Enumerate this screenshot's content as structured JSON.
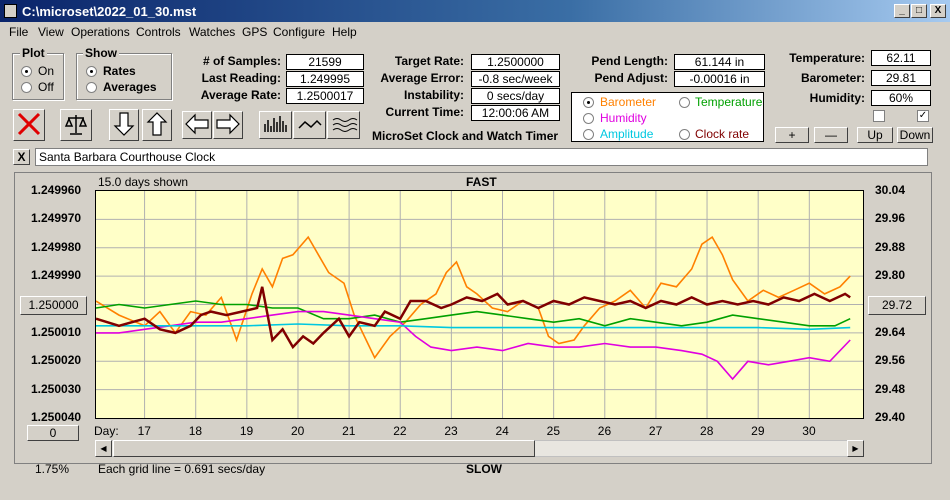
{
  "window": {
    "title": "C:\\microset\\2022_01_30.mst",
    "minimize": "_",
    "maximize": "□",
    "close": "X"
  },
  "menu": [
    "File",
    "View",
    "Operations",
    "Controls",
    "Watches",
    "GPS",
    "Configure",
    "Help"
  ],
  "plot_group": {
    "title": "Plot",
    "options": [
      "On",
      "Off"
    ],
    "selected": "On"
  },
  "show_group": {
    "title": "Show",
    "options": [
      "Rates",
      "Averages"
    ],
    "selected": "Rates"
  },
  "stats": {
    "samples_label": "# of Samples:",
    "samples": "21599",
    "last_reading_label": "Last Reading:",
    "last_reading": "1.249995",
    "average_rate_label": "Average Rate:",
    "average_rate": "1.2500017"
  },
  "rates": {
    "target_rate_label": "Target Rate:",
    "target_rate": "1.2500000",
    "average_error_label": "Average Error:",
    "average_error": "-0.8 sec/week",
    "instability_label": "Instability:",
    "instability": "0 secs/day",
    "current_time_label": "Current Time:",
    "current_time": "12:00:06 AM"
  },
  "app_caption": "MicroSet Clock and Watch Timer",
  "pendulum": {
    "length_label": "Pend Length:",
    "length": "61.144 in",
    "adjust_label": "Pend Adjust:",
    "adjust": "-0.00016 in"
  },
  "sensor_options": [
    {
      "label": "Barometer",
      "color": "#ff8000",
      "selected": true
    },
    {
      "label": "Temperature",
      "color": "#00a000",
      "selected": false
    },
    {
      "label": "Humidity",
      "color": "#e000e0",
      "selected": false
    },
    {
      "label": "Clock rate",
      "color": "#800000",
      "selected": false
    },
    {
      "label": "Amplitude",
      "color": "#00c8e0",
      "selected": false
    }
  ],
  "environment": {
    "temperature_label": "Temperature:",
    "temperature": "62.11",
    "barometer_label": "Barometer:",
    "barometer": "29.81",
    "humidity_label": "Humidity:",
    "humidity": "60%"
  },
  "adjust_buttons": [
    "+",
    "—",
    "Up",
    "Down"
  ],
  "checkbox_states": [
    false,
    true
  ],
  "watch_close": "X",
  "watch_name": "Santa Barbara Courthouse Clock",
  "chart": {
    "days_shown": "15.0 days shown",
    "fast_label": "FAST",
    "slow_label": "SLOW",
    "grid_note": "Each grid line = 0.691 secs/day",
    "percent": "1.75%",
    "left_box": "1.250000",
    "right_box": "29.72",
    "bottom_box": "0",
    "day_label": "Day:"
  },
  "chart_data": {
    "type": "line",
    "x_unit": "Day",
    "x_ticks": [
      17,
      18,
      19,
      20,
      21,
      22,
      23,
      24,
      25,
      26,
      27,
      28,
      29,
      30
    ],
    "xlim": [
      16.05,
      31.05
    ],
    "y_left_ticks": [
      "1.249960",
      "1.249970",
      "1.249980",
      "1.249990",
      "1.250000",
      "1.250010",
      "1.250020",
      "1.250030",
      "1.250040"
    ],
    "y_left_range": [
      1.24996,
      1.25004
    ],
    "y_right_ticks": [
      "30.04",
      "29.96",
      "29.88",
      "29.80",
      "29.72",
      "29.64",
      "29.56",
      "29.48",
      "29.40"
    ],
    "y_right_range": [
      29.4,
      30.04
    ],
    "series": [
      {
        "name": "Barometer",
        "color": "#ff8000",
        "points": [
          [
            16.05,
            29.73
          ],
          [
            16.5,
            29.69
          ],
          [
            17.0,
            29.66
          ],
          [
            17.3,
            29.7
          ],
          [
            17.6,
            29.64
          ],
          [
            17.9,
            29.7
          ],
          [
            18.2,
            29.69
          ],
          [
            18.5,
            29.74
          ],
          [
            18.8,
            29.62
          ],
          [
            19.1,
            29.75
          ],
          [
            19.3,
            29.82
          ],
          [
            19.5,
            29.77
          ],
          [
            19.7,
            29.85
          ],
          [
            19.9,
            29.86
          ],
          [
            20.2,
            29.91
          ],
          [
            20.4,
            29.86
          ],
          [
            20.6,
            29.81
          ],
          [
            20.9,
            29.78
          ],
          [
            21.1,
            29.69
          ],
          [
            21.3,
            29.63
          ],
          [
            21.5,
            29.57
          ],
          [
            21.8,
            29.63
          ],
          [
            22.1,
            29.67
          ],
          [
            22.4,
            29.72
          ],
          [
            22.7,
            29.75
          ],
          [
            22.9,
            29.81
          ],
          [
            23.1,
            29.84
          ],
          [
            23.3,
            29.77
          ],
          [
            23.5,
            29.75
          ],
          [
            23.8,
            29.71
          ],
          [
            24.1,
            29.7
          ],
          [
            24.4,
            29.73
          ],
          [
            24.7,
            29.71
          ],
          [
            24.9,
            29.63
          ],
          [
            25.1,
            29.61
          ],
          [
            25.4,
            29.62
          ],
          [
            25.6,
            29.66
          ],
          [
            25.9,
            29.71
          ],
          [
            26.2,
            29.73
          ],
          [
            26.5,
            29.76
          ],
          [
            26.8,
            29.71
          ],
          [
            27.1,
            29.78
          ],
          [
            27.4,
            29.77
          ],
          [
            27.7,
            29.82
          ],
          [
            27.9,
            29.89
          ],
          [
            28.1,
            29.91
          ],
          [
            28.3,
            29.86
          ],
          [
            28.5,
            29.79
          ],
          [
            28.8,
            29.73
          ],
          [
            29.1,
            29.76
          ],
          [
            29.4,
            29.74
          ],
          [
            29.7,
            29.76
          ],
          [
            30.0,
            29.78
          ],
          [
            30.3,
            29.75
          ],
          [
            30.6,
            29.77
          ],
          [
            30.8,
            29.8
          ]
        ]
      },
      {
        "name": "Temperature",
        "color": "#00a000",
        "points": [
          [
            16.05,
            29.71
          ],
          [
            16.5,
            29.72
          ],
          [
            17.0,
            29.71
          ],
          [
            17.5,
            29.72
          ],
          [
            18.0,
            29.73
          ],
          [
            18.5,
            29.72
          ],
          [
            19.0,
            29.72
          ],
          [
            19.5,
            29.71
          ],
          [
            20.0,
            29.71
          ],
          [
            20.5,
            29.68
          ],
          [
            21.0,
            29.68
          ],
          [
            21.5,
            29.69
          ],
          [
            22.0,
            29.67
          ],
          [
            22.5,
            29.68
          ],
          [
            23.0,
            29.69
          ],
          [
            23.5,
            29.7
          ],
          [
            24.0,
            29.69
          ],
          [
            24.5,
            29.68
          ],
          [
            25.0,
            29.67
          ],
          [
            25.5,
            29.68
          ],
          [
            26.0,
            29.66
          ],
          [
            26.5,
            29.68
          ],
          [
            27.0,
            29.67
          ],
          [
            27.5,
            29.66
          ],
          [
            28.0,
            29.67
          ],
          [
            28.5,
            29.69
          ],
          [
            29.0,
            29.68
          ],
          [
            29.5,
            29.67
          ],
          [
            30.0,
            29.66
          ],
          [
            30.5,
            29.66
          ],
          [
            30.8,
            29.68
          ]
        ]
      },
      {
        "name": "Humidity",
        "color": "#e000e0",
        "points": [
          [
            16.05,
            29.64
          ],
          [
            16.5,
            29.64
          ],
          [
            17.0,
            29.65
          ],
          [
            17.5,
            29.66
          ],
          [
            18.0,
            29.67
          ],
          [
            18.5,
            29.67
          ],
          [
            19.0,
            29.68
          ],
          [
            19.5,
            29.69
          ],
          [
            20.0,
            29.7
          ],
          [
            20.5,
            29.7
          ],
          [
            21.0,
            29.69
          ],
          [
            21.5,
            29.68
          ],
          [
            22.0,
            29.67
          ],
          [
            22.3,
            29.63
          ],
          [
            22.6,
            29.6
          ],
          [
            23.0,
            29.59
          ],
          [
            23.5,
            29.6
          ],
          [
            24.0,
            29.59
          ],
          [
            24.5,
            29.61
          ],
          [
            25.0,
            29.6
          ],
          [
            25.5,
            29.6
          ],
          [
            26.0,
            29.61
          ],
          [
            26.5,
            29.6
          ],
          [
            27.0,
            29.6
          ],
          [
            27.5,
            29.59
          ],
          [
            27.9,
            29.58
          ],
          [
            28.2,
            29.56
          ],
          [
            28.5,
            29.51
          ],
          [
            28.8,
            29.56
          ],
          [
            29.2,
            29.55
          ],
          [
            29.6,
            29.56
          ],
          [
            30.0,
            29.57
          ],
          [
            30.4,
            29.56
          ],
          [
            30.8,
            29.62
          ]
        ]
      },
      {
        "name": "Amplitude",
        "color": "#00c8e0",
        "points": [
          [
            16.05,
            29.66
          ],
          [
            17.0,
            29.66
          ],
          [
            18.0,
            29.66
          ],
          [
            19.0,
            29.66
          ],
          [
            20.0,
            29.665
          ],
          [
            21.0,
            29.66
          ],
          [
            22.0,
            29.66
          ],
          [
            23.0,
            29.655
          ],
          [
            24.0,
            29.655
          ],
          [
            25.0,
            29.655
          ],
          [
            26.0,
            29.655
          ],
          [
            27.0,
            29.655
          ],
          [
            28.0,
            29.655
          ],
          [
            29.0,
            29.655
          ],
          [
            30.0,
            29.65
          ],
          [
            30.8,
            29.655
          ]
        ]
      },
      {
        "name": "Clock rate",
        "color": "#800000",
        "points": [
          [
            16.05,
            29.68
          ],
          [
            16.5,
            29.66
          ],
          [
            17.0,
            29.68
          ],
          [
            17.3,
            29.65
          ],
          [
            17.6,
            29.64
          ],
          [
            17.9,
            29.66
          ],
          [
            18.1,
            29.69
          ],
          [
            18.3,
            29.7
          ],
          [
            18.6,
            29.69
          ],
          [
            18.9,
            29.7
          ],
          [
            19.2,
            29.71
          ],
          [
            19.3,
            29.77
          ],
          [
            19.5,
            29.62
          ],
          [
            19.7,
            29.65
          ],
          [
            19.9,
            29.6
          ],
          [
            20.1,
            29.63
          ],
          [
            20.3,
            29.61
          ],
          [
            20.5,
            29.64
          ],
          [
            20.8,
            29.68
          ],
          [
            21.0,
            29.63
          ],
          [
            21.2,
            29.67
          ],
          [
            21.5,
            29.66
          ],
          [
            21.7,
            29.7
          ],
          [
            22.0,
            29.68
          ],
          [
            22.2,
            29.73
          ],
          [
            22.5,
            29.73
          ],
          [
            22.8,
            29.71
          ],
          [
            23.0,
            29.72
          ],
          [
            23.3,
            29.74
          ],
          [
            23.6,
            29.73
          ],
          [
            23.9,
            29.75
          ],
          [
            24.1,
            29.72
          ],
          [
            24.4,
            29.73
          ],
          [
            24.7,
            29.71
          ],
          [
            25.0,
            29.73
          ],
          [
            25.3,
            29.72
          ],
          [
            25.6,
            29.74
          ],
          [
            25.9,
            29.73
          ],
          [
            26.2,
            29.72
          ],
          [
            26.5,
            29.73
          ],
          [
            26.8,
            29.71
          ],
          [
            27.1,
            29.73
          ],
          [
            27.4,
            29.72
          ],
          [
            27.7,
            29.74
          ],
          [
            28.0,
            29.72
          ],
          [
            28.3,
            29.73
          ],
          [
            28.6,
            29.72
          ],
          [
            28.9,
            29.73
          ],
          [
            29.2,
            29.72
          ],
          [
            29.5,
            29.74
          ],
          [
            29.8,
            29.73
          ],
          [
            30.1,
            29.75
          ],
          [
            30.4,
            29.73
          ],
          [
            30.7,
            29.75
          ],
          [
            30.8,
            29.74
          ]
        ]
      }
    ]
  }
}
